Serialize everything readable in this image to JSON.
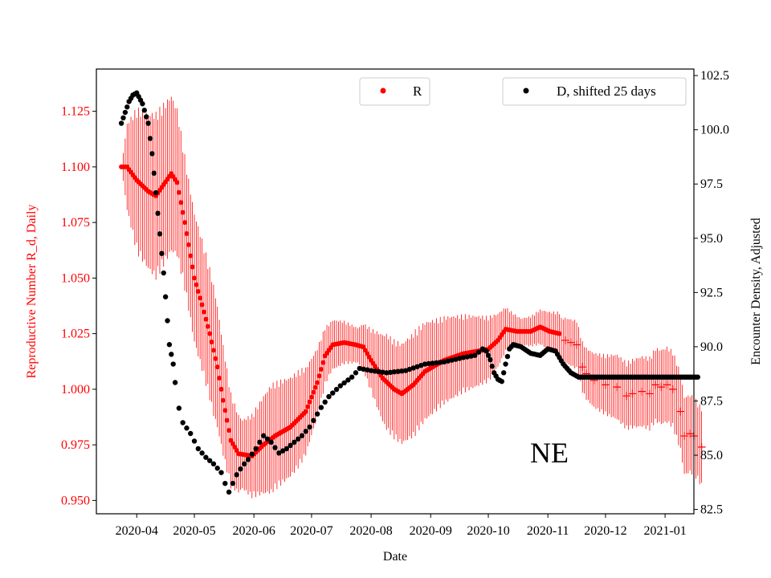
{
  "chart_data": {
    "type": "scatter",
    "xlabel": "Date",
    "ylabel_left": "Reproductive Number R_d, Daily",
    "ylabel_right": "Encounter Density, Adjusted",
    "annotation": "NE",
    "colors": {
      "r_series": "#ff0000",
      "d_series": "#000000",
      "axis": "#000000",
      "left_axis_text": "#ff0000"
    },
    "x_tick_labels": [
      "2020-04",
      "2020-05",
      "2020-06",
      "2020-07",
      "2020-08",
      "2020-09",
      "2020-10",
      "2020-11",
      "2020-12",
      "2021-01"
    ],
    "x_tick_days": [
      0,
      30,
      61,
      91,
      122,
      153,
      183,
      214,
      244,
      275
    ],
    "x_range_days": [
      -21,
      290
    ],
    "y_left_ticks": [
      "0.950",
      "0.975",
      "1.000",
      "1.025",
      "1.050",
      "1.075",
      "1.100",
      "1.125"
    ],
    "y_left_range": [
      0.944,
      1.144
    ],
    "y_right_ticks": [
      "82.5",
      "85.0",
      "87.5",
      "90.0",
      "92.5",
      "95.0",
      "97.5",
      "100.0",
      "102.5"
    ],
    "y_right_range": [
      82.3,
      102.8
    ],
    "legend": {
      "r_label": "R",
      "d_label": "D, shifted 25 days"
    },
    "r_keypoints": [
      [
        -8,
        1.1
      ],
      [
        -5,
        1.1
      ],
      [
        0,
        1.094
      ],
      [
        6,
        1.089
      ],
      [
        10,
        1.087
      ],
      [
        14,
        1.092
      ],
      [
        18,
        1.097
      ],
      [
        21,
        1.093
      ],
      [
        25,
        1.075
      ],
      [
        30,
        1.05
      ],
      [
        34,
        1.038
      ],
      [
        38,
        1.025
      ],
      [
        42,
        1.01
      ],
      [
        45,
        0.995
      ],
      [
        49,
        0.977
      ],
      [
        53,
        0.971
      ],
      [
        60,
        0.97
      ],
      [
        66,
        0.975
      ],
      [
        72,
        0.979
      ],
      [
        80,
        0.983
      ],
      [
        88,
        0.99
      ],
      [
        94,
        1.003
      ],
      [
        98,
        1.015
      ],
      [
        102,
        1.02
      ],
      [
        108,
        1.021
      ],
      [
        114,
        1.02
      ],
      [
        118,
        1.019
      ],
      [
        122,
        1.013
      ],
      [
        128,
        1.005
      ],
      [
        134,
        1.0
      ],
      [
        138,
        0.998
      ],
      [
        144,
        1.002
      ],
      [
        150,
        1.008
      ],
      [
        160,
        1.013
      ],
      [
        170,
        1.016
      ],
      [
        183,
        1.018
      ],
      [
        188,
        1.022
      ],
      [
        192,
        1.027
      ],
      [
        198,
        1.026
      ],
      [
        205,
        1.026
      ],
      [
        210,
        1.028
      ],
      [
        215,
        1.026
      ],
      [
        220,
        1.025
      ]
    ],
    "r_plus_points": [
      [
        223,
        1.022
      ],
      [
        226,
        1.021
      ],
      [
        229,
        1.02
      ],
      [
        232,
        1.01
      ],
      [
        234,
        1.007
      ],
      [
        238,
        1.004
      ],
      [
        244,
        1.002
      ],
      [
        250,
        1.001
      ],
      [
        255,
        0.997
      ],
      [
        258,
        0.998
      ],
      [
        263,
        0.999
      ],
      [
        267,
        0.998
      ],
      [
        270,
        1.002
      ],
      [
        273,
        1.001
      ],
      [
        276,
        1.002
      ],
      [
        279,
        1.0
      ],
      [
        283,
        0.99
      ],
      [
        285,
        0.979
      ],
      [
        288,
        0.98
      ],
      [
        290,
        0.979
      ],
      [
        294,
        0.974
      ]
    ],
    "d_keypoints": [
      [
        -8,
        100.3
      ],
      [
        -6,
        100.8
      ],
      [
        -4,
        101.3
      ],
      [
        -2,
        101.6
      ],
      [
        0,
        101.7
      ],
      [
        3,
        101.2
      ],
      [
        6,
        100.3
      ],
      [
        8,
        98.9
      ],
      [
        10,
        97.1
      ],
      [
        12,
        95.2
      ],
      [
        14,
        93.4
      ],
      [
        17,
        90.1
      ],
      [
        19,
        89.2
      ],
      [
        21,
        87.5
      ],
      [
        24,
        86.5
      ],
      [
        28,
        86.0
      ],
      [
        32,
        85.3
      ],
      [
        36,
        84.9
      ],
      [
        40,
        84.6
      ],
      [
        44,
        84.2
      ],
      [
        46,
        83.7
      ],
      [
        48,
        83.3
      ],
      [
        52,
        84.1
      ],
      [
        55,
        84.5
      ],
      [
        58,
        84.8
      ],
      [
        62,
        85.3
      ],
      [
        66,
        85.9
      ],
      [
        70,
        85.6
      ],
      [
        74,
        85.1
      ],
      [
        78,
        85.3
      ],
      [
        82,
        85.6
      ],
      [
        86,
        85.9
      ],
      [
        90,
        86.3
      ],
      [
        96,
        87.2
      ],
      [
        100,
        87.7
      ],
      [
        106,
        88.2
      ],
      [
        112,
        88.6
      ],
      [
        116,
        89.0
      ],
      [
        122,
        88.9
      ],
      [
        130,
        88.8
      ],
      [
        140,
        88.9
      ],
      [
        150,
        89.2
      ],
      [
        160,
        89.3
      ],
      [
        170,
        89.5
      ],
      [
        176,
        89.6
      ],
      [
        180,
        89.9
      ],
      [
        182,
        89.8
      ],
      [
        184,
        89.4
      ],
      [
        186,
        88.8
      ],
      [
        188,
        88.5
      ],
      [
        190,
        88.4
      ],
      [
        192,
        89.2
      ],
      [
        194,
        89.9
      ],
      [
        196,
        90.1
      ],
      [
        200,
        90.0
      ],
      [
        205,
        89.7
      ],
      [
        210,
        89.6
      ],
      [
        214,
        89.9
      ],
      [
        218,
        89.8
      ],
      [
        222,
        89.2
      ],
      [
        226,
        88.8
      ],
      [
        230,
        88.6
      ],
      [
        240,
        88.6
      ],
      [
        250,
        88.6
      ],
      [
        260,
        88.6
      ],
      [
        270,
        88.6
      ],
      [
        280,
        88.6
      ],
      [
        292,
        88.6
      ]
    ],
    "r_error_band": [
      [
        -8,
        0.0
      ],
      [
        -5,
        0.02
      ],
      [
        0,
        0.033
      ],
      [
        10,
        0.038
      ],
      [
        18,
        0.036
      ],
      [
        26,
        0.03
      ],
      [
        40,
        0.03
      ],
      [
        55,
        0.016
      ],
      [
        70,
        0.025
      ],
      [
        85,
        0.022
      ],
      [
        100,
        0.012
      ],
      [
        115,
        0.008
      ],
      [
        130,
        0.022
      ],
      [
        145,
        0.024
      ],
      [
        160,
        0.02
      ],
      [
        183,
        0.015
      ],
      [
        200,
        0.006
      ],
      [
        210,
        0.008
      ],
      [
        220,
        0.01
      ],
      [
        235,
        0.012
      ],
      [
        250,
        0.015
      ],
      [
        270,
        0.017
      ],
      [
        285,
        0.018
      ],
      [
        294,
        0.018
      ]
    ]
  }
}
